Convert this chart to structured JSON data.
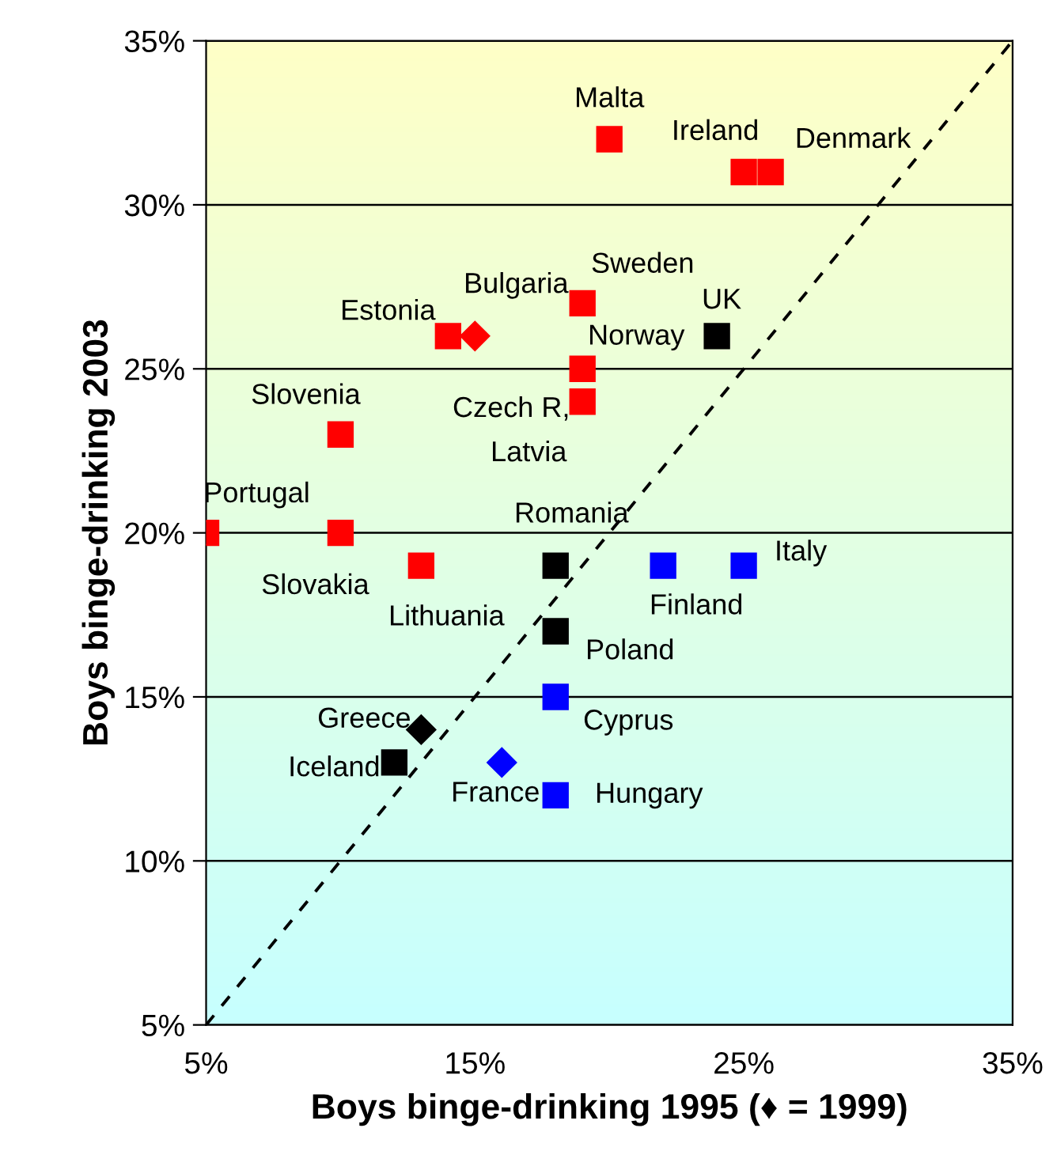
{
  "chart_data": {
    "type": "scatter",
    "xlabel": "Boys binge-drinking 1995 (♦ = 1999)",
    "ylabel": "Boys binge-drinking 2003",
    "xlim": [
      5,
      35
    ],
    "ylim": [
      5,
      35
    ],
    "xticks": [
      {
        "value": 5,
        "label": "5%"
      },
      {
        "value": 15,
        "label": "15%"
      },
      {
        "value": 25,
        "label": "25%"
      },
      {
        "value": 35,
        "label": "35%"
      }
    ],
    "yticks": [
      {
        "value": 5,
        "label": "5%"
      },
      {
        "value": 10,
        "label": "10%"
      },
      {
        "value": 15,
        "label": "15%"
      },
      {
        "value": 20,
        "label": "20%"
      },
      {
        "value": 25,
        "label": "25%"
      },
      {
        "value": 30,
        "label": "30%"
      },
      {
        "value": 35,
        "label": "35%"
      }
    ],
    "grid": "y",
    "legend": false,
    "series": [
      {
        "type": "scatter",
        "marker": "square",
        "color": "#ff0000",
        "x": [
          20,
          25,
          26,
          19,
          19,
          19,
          14,
          10,
          5,
          10,
          13
        ],
        "values": [
          32,
          31,
          31,
          27,
          25,
          24,
          26,
          23,
          20,
          20,
          19
        ]
      },
      {
        "type": "scatter",
        "marker": "diamond",
        "color": "#ff0000",
        "x": [
          15
        ],
        "values": [
          26
        ]
      },
      {
        "type": "scatter",
        "marker": "square",
        "color": "#000000",
        "x": [
          24,
          18,
          18,
          12
        ],
        "values": [
          26,
          19,
          17,
          13
        ]
      },
      {
        "type": "scatter",
        "marker": "diamond",
        "color": "#000000",
        "x": [
          13
        ],
        "values": [
          14
        ]
      },
      {
        "type": "scatter",
        "marker": "square",
        "color": "#0000ff",
        "x": [
          22,
          25,
          18,
          18
        ],
        "values": [
          19,
          19,
          15,
          12
        ]
      },
      {
        "type": "scatter",
        "marker": "diamond",
        "color": "#0000ff",
        "x": [
          16
        ],
        "values": [
          13
        ]
      },
      {
        "type": "line",
        "line_style": "dashed",
        "marker": "none",
        "color": "#000000",
        "x": [
          5,
          35
        ],
        "values": [
          5,
          35
        ]
      }
    ],
    "annotations": [
      {
        "text": "Malta",
        "x": 20,
        "y": 32
      },
      {
        "text": "Ireland",
        "x": 25,
        "y": 31
      },
      {
        "text": "Denmark",
        "x": 26,
        "y": 31
      },
      {
        "text": "Sweden",
        "x": 19,
        "y": 27
      },
      {
        "text": "Norway",
        "x": 19,
        "y": 25
      },
      {
        "text": "Czech R,",
        "x": 19,
        "y": 24
      },
      {
        "text": "Latvia",
        "x": 19,
        "y": 24
      },
      {
        "text": "UK",
        "x": 24,
        "y": 26
      },
      {
        "text": "Bulgaria",
        "x": 15,
        "y": 26
      },
      {
        "text": "Estonia",
        "x": 14,
        "y": 26
      },
      {
        "text": "Slovenia",
        "x": 10,
        "y": 23
      },
      {
        "text": "Portugal",
        "x": 5,
        "y": 20
      },
      {
        "text": "Slovakia",
        "x": 10,
        "y": 20
      },
      {
        "text": "Lithuania",
        "x": 13,
        "y": 19
      },
      {
        "text": "Romania",
        "x": 18,
        "y": 19
      },
      {
        "text": "Finland",
        "x": 22,
        "y": 19
      },
      {
        "text": "Italy",
        "x": 25,
        "y": 19
      },
      {
        "text": "Poland",
        "x": 18,
        "y": 17
      },
      {
        "text": "Cyprus",
        "x": 18,
        "y": 15
      },
      {
        "text": "Greece",
        "x": 13,
        "y": 14
      },
      {
        "text": "Iceland",
        "x": 12,
        "y": 13
      },
      {
        "text": "France",
        "x": 16,
        "y": 13
      },
      {
        "text": "Hungary",
        "x": 18,
        "y": 12
      }
    ]
  }
}
